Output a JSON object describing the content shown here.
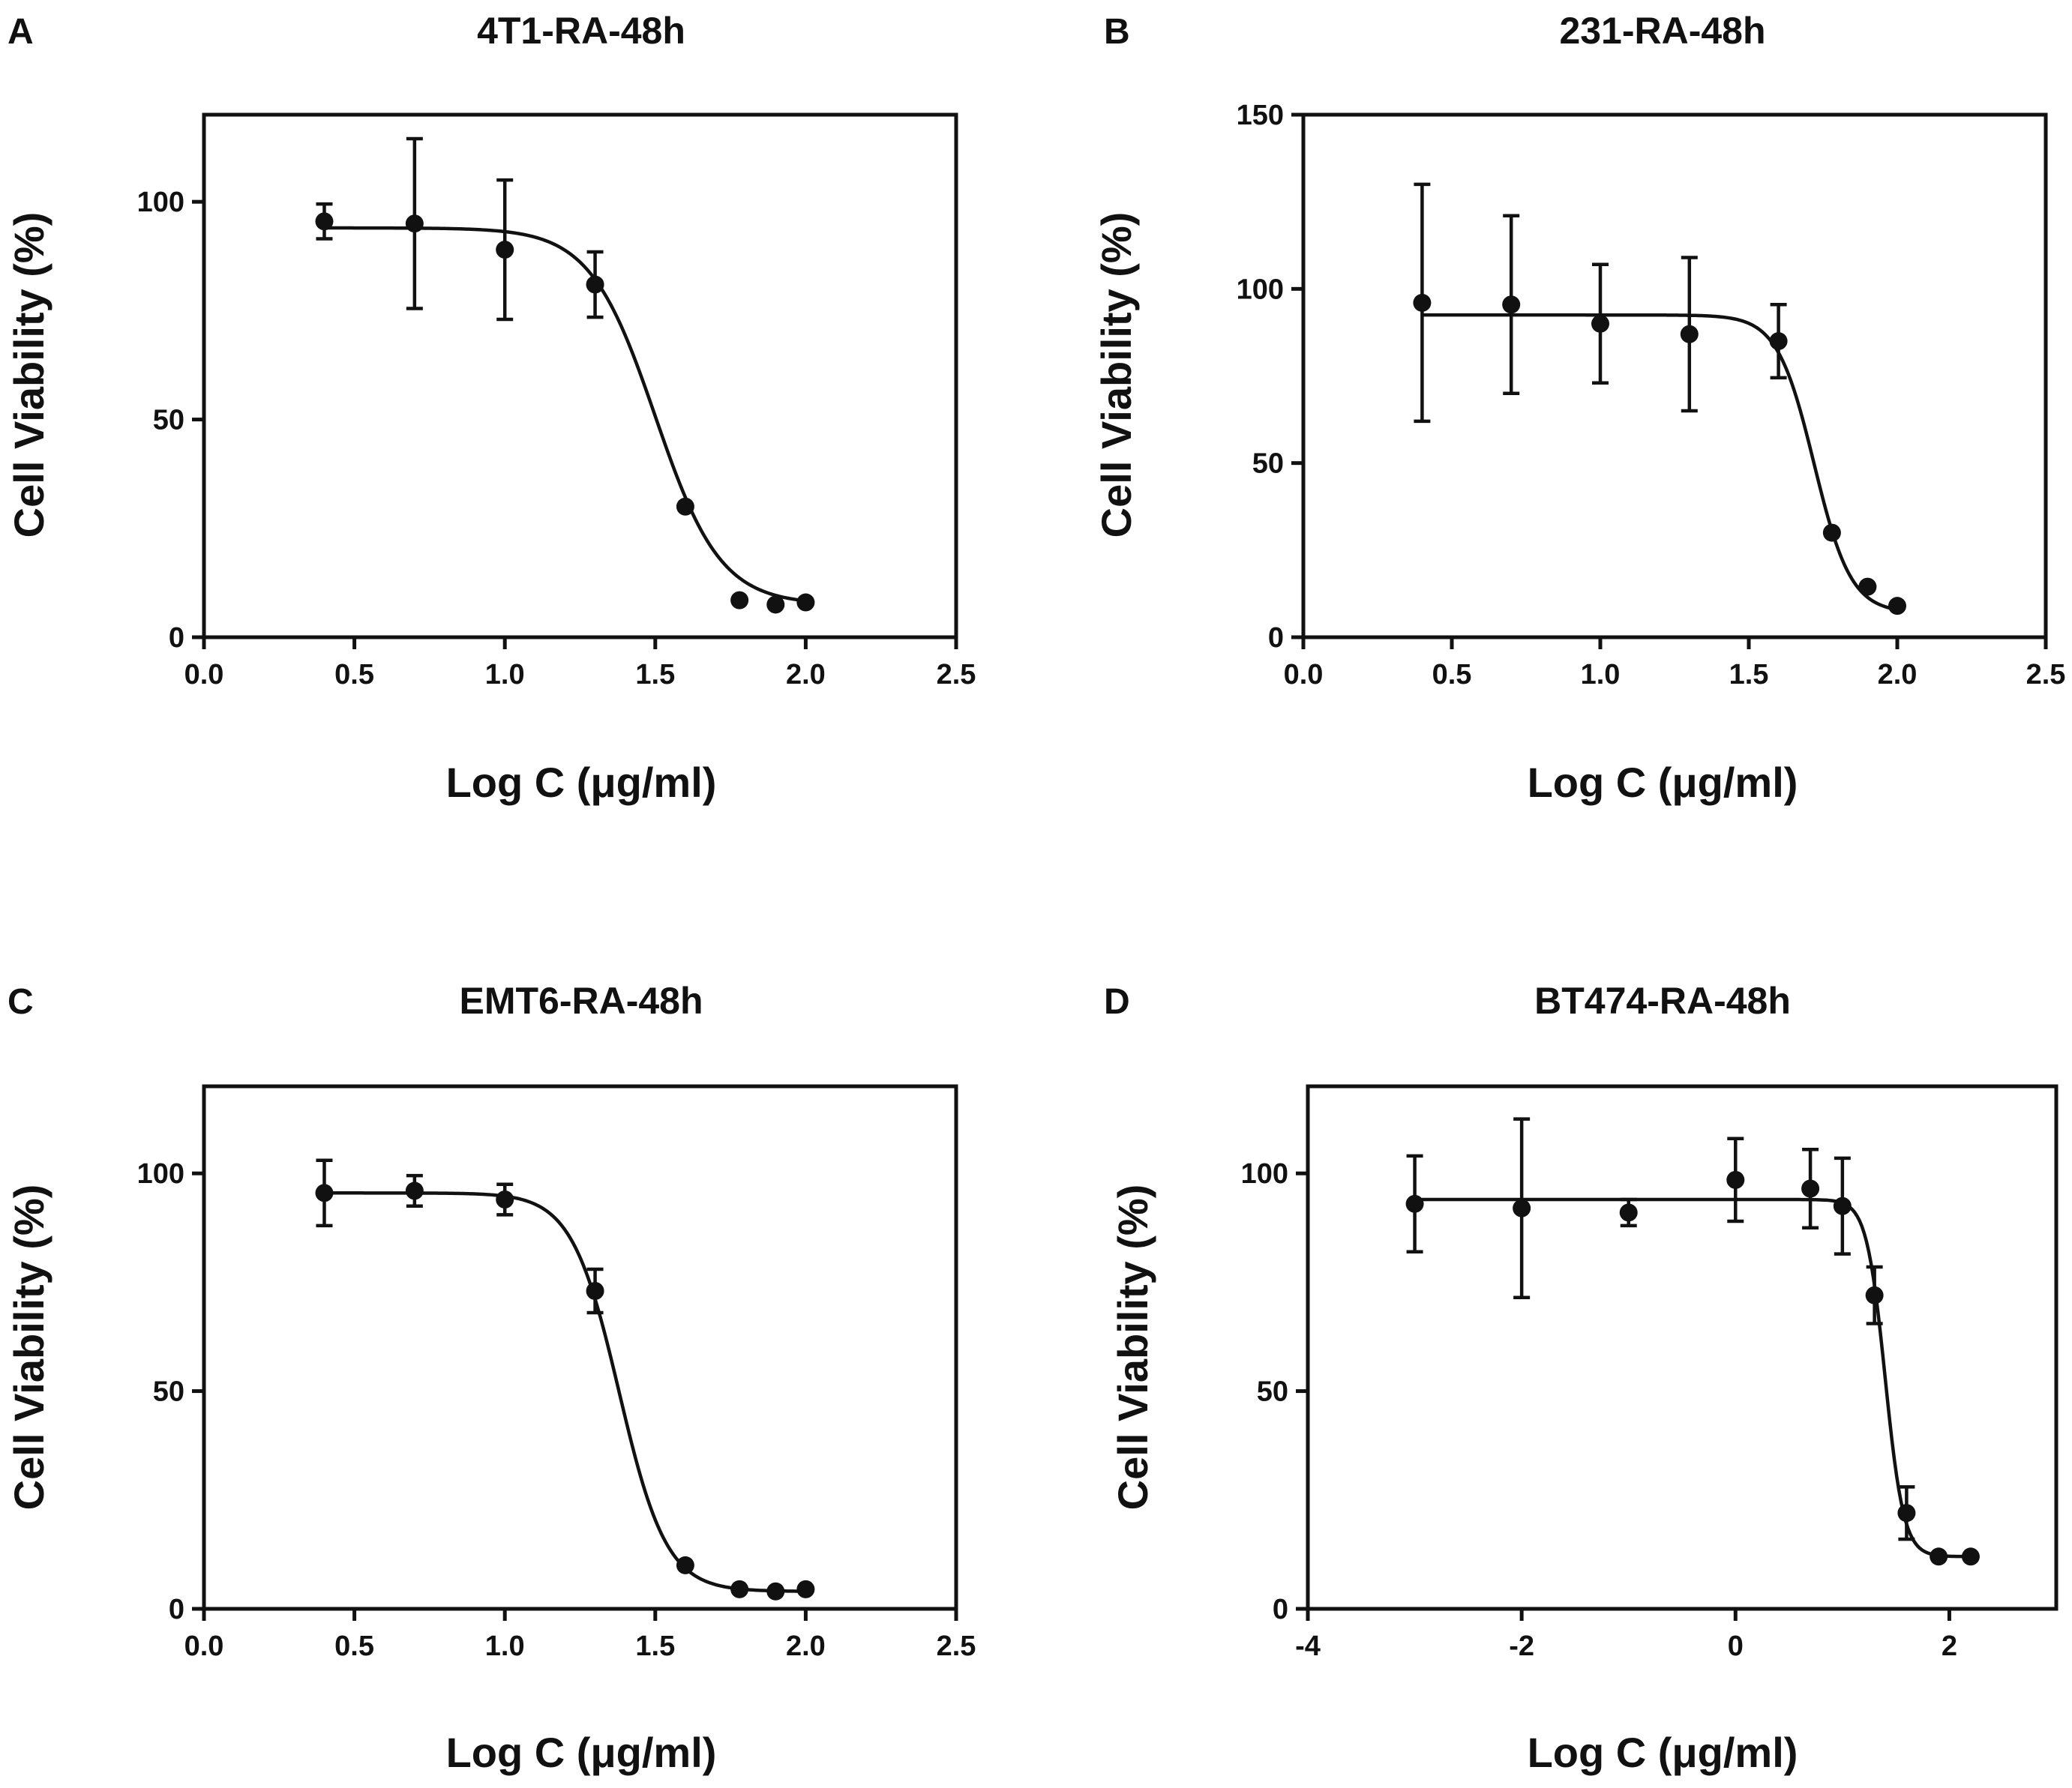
{
  "chart_data": [
    {
      "panel": "A",
      "type": "scatter",
      "title": "4T1-RA-48h",
      "xlabel": "Log C (μg/ml)",
      "ylabel": "Cell Viability (%)",
      "xlim": [
        0,
        2.5
      ],
      "ylim": [
        0,
        120
      ],
      "xticks": [
        "0.0",
        "0.5",
        "1.0",
        "1.5",
        "2.0",
        "2.5"
      ],
      "yticks": [
        "0",
        "50",
        "100"
      ],
      "points": [
        {
          "x": 0.4,
          "y": 95.5,
          "err": 4
        },
        {
          "x": 0.7,
          "y": 95,
          "err": 19.5
        },
        {
          "x": 1.0,
          "y": 89,
          "err": 16
        },
        {
          "x": 1.3,
          "y": 81,
          "err": 7.5
        },
        {
          "x": 1.6,
          "y": 30,
          "err": 0
        },
        {
          "x": 1.78,
          "y": 8.5,
          "err": 0
        },
        {
          "x": 1.9,
          "y": 7.5,
          "err": 0
        },
        {
          "x": 2.0,
          "y": 8,
          "err": 0
        }
      ],
      "fit": {
        "top": 94,
        "bottom": 7.5,
        "logEC50": 1.5,
        "hill": 4.0
      }
    },
    {
      "panel": "B",
      "type": "scatter",
      "title": "231-RA-48h",
      "xlabel": "Log C (μg/ml)",
      "ylabel": "Cell Viability (%)",
      "xlim": [
        0,
        2.5
      ],
      "ylim": [
        0,
        150
      ],
      "xticks": [
        "0.0",
        "0.5",
        "1.0",
        "1.5",
        "2.0",
        "2.5"
      ],
      "yticks": [
        "0",
        "50",
        "100",
        "150"
      ],
      "points": [
        {
          "x": 0.4,
          "y": 96,
          "err": 34
        },
        {
          "x": 0.7,
          "y": 95.5,
          "err": 25.5
        },
        {
          "x": 1.0,
          "y": 90,
          "err": 17
        },
        {
          "x": 1.3,
          "y": 87,
          "err": 22
        },
        {
          "x": 1.6,
          "y": 85,
          "err": 10.5
        },
        {
          "x": 1.78,
          "y": 30,
          "err": 0
        },
        {
          "x": 1.9,
          "y": 14.5,
          "err": 0
        },
        {
          "x": 2.0,
          "y": 9,
          "err": 0
        }
      ],
      "fit": {
        "top": 92.5,
        "bottom": 7,
        "logEC50": 1.72,
        "hill": 7.0
      }
    },
    {
      "panel": "C",
      "type": "scatter",
      "title": "EMT6-RA-48h",
      "xlabel": "Log C (μg/ml)",
      "ylabel": "Cell Viability (%)",
      "xlim": [
        0,
        2.5
      ],
      "ylim": [
        0,
        120
      ],
      "xticks": [
        "0.0",
        "0.5",
        "1.0",
        "1.5",
        "2.0",
        "2.5"
      ],
      "yticks": [
        "0",
        "50",
        "100"
      ],
      "points": [
        {
          "x": 0.4,
          "y": 95.5,
          "err": 7.5
        },
        {
          "x": 0.7,
          "y": 96,
          "err": 3.5
        },
        {
          "x": 1.0,
          "y": 94,
          "err": 3.5
        },
        {
          "x": 1.3,
          "y": 73,
          "err": 5
        },
        {
          "x": 1.6,
          "y": 10,
          "err": 0
        },
        {
          "x": 1.78,
          "y": 4.5,
          "err": 0
        },
        {
          "x": 1.9,
          "y": 4,
          "err": 0
        },
        {
          "x": 2.0,
          "y": 4.5,
          "err": 0
        }
      ],
      "fit": {
        "top": 95.5,
        "bottom": 4,
        "logEC50": 1.38,
        "hill": 5.5
      }
    },
    {
      "panel": "D",
      "type": "scatter",
      "title": "BT474-RA-48h",
      "xlabel": "Log C (μg/ml)",
      "ylabel": "Cell Viability (%)",
      "xlim": [
        -4,
        3
      ],
      "ylim": [
        0,
        120
      ],
      "xticks": [
        "-4",
        "-2",
        "0",
        "2"
      ],
      "xtick_values": [
        -4,
        -2,
        0,
        2
      ],
      "yticks": [
        "0",
        "50",
        "100"
      ],
      "points": [
        {
          "x": -3,
          "y": 93,
          "err": 11
        },
        {
          "x": -2,
          "y": 92,
          "err": 20.5
        },
        {
          "x": -1,
          "y": 91,
          "err": 3
        },
        {
          "x": 0,
          "y": 98.5,
          "err": 9.5
        },
        {
          "x": 0.7,
          "y": 96.5,
          "err": 9
        },
        {
          "x": 1.0,
          "y": 92.5,
          "err": 11
        },
        {
          "x": 1.3,
          "y": 72,
          "err": 6.5
        },
        {
          "x": 1.6,
          "y": 22,
          "err": 6
        },
        {
          "x": 1.9,
          "y": 12,
          "err": 0
        },
        {
          "x": 2.2,
          "y": 12,
          "err": 0
        }
      ],
      "fit": {
        "top": 94,
        "bottom": 12,
        "logEC50": 1.4,
        "hill": 5.0
      }
    }
  ]
}
